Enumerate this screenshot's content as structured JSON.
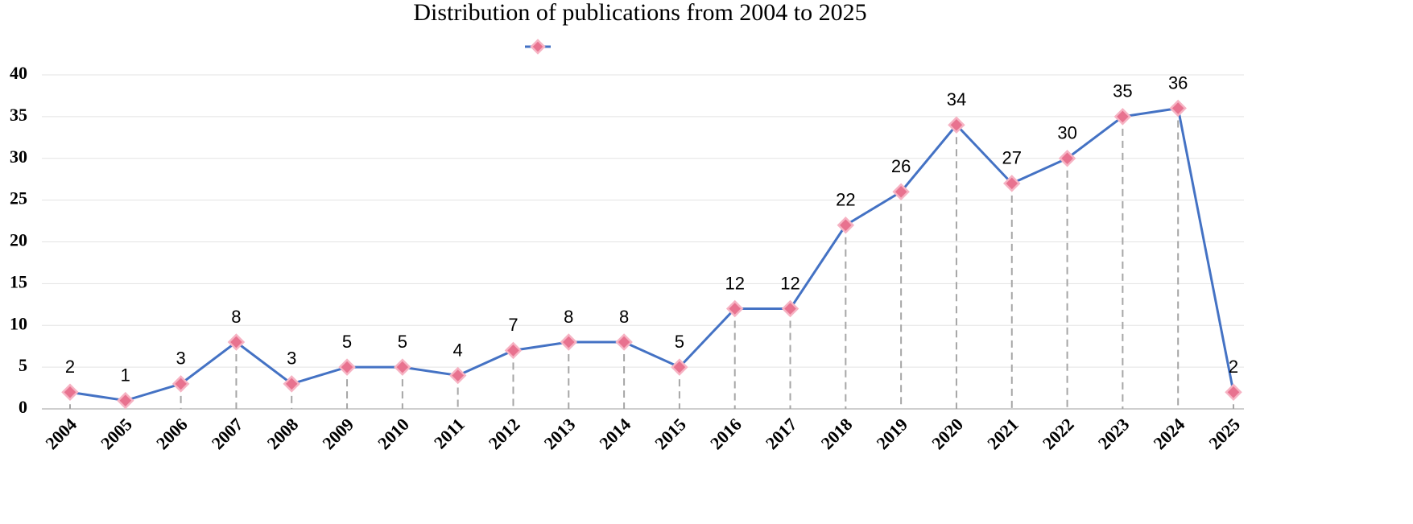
{
  "chart_data": {
    "type": "line",
    "title": "Distribution of publications from 2004 to 2025",
    "categories": [
      "2004",
      "2005",
      "2006",
      "2007",
      "2008",
      "2009",
      "2010",
      "2011",
      "2012",
      "2013",
      "2014",
      "2015",
      "2016",
      "2017",
      "2018",
      "2019",
      "2020",
      "2021",
      "2022",
      "2023",
      "2024",
      "2025"
    ],
    "series": [
      {
        "color": "#4472c4",
        "marker_color": "#e8728f",
        "values": [
          2,
          1,
          3,
          8,
          3,
          5,
          5,
          4,
          7,
          8,
          8,
          5,
          12,
          12,
          22,
          26,
          34,
          27,
          30,
          35,
          36,
          2
        ]
      }
    ],
    "ylim": [
      0,
      40
    ],
    "yticks": [
      0,
      5,
      10,
      15,
      20,
      25,
      30,
      35,
      40
    ],
    "grid": true,
    "drop_lines": true,
    "data_labels": true,
    "legend": "top"
  }
}
